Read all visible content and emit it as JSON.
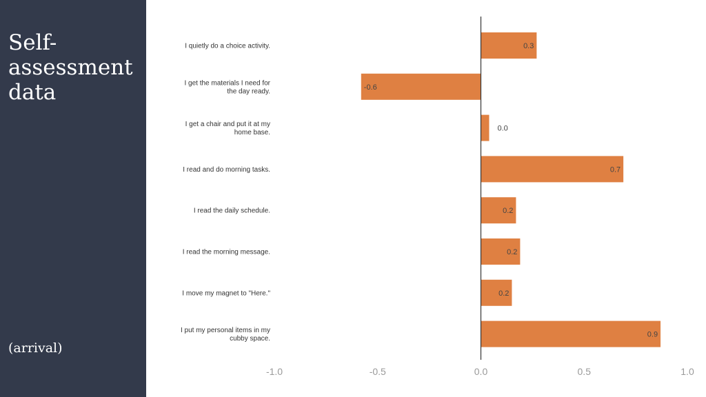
{
  "slide": {
    "title": "Self-assessment data",
    "subtitle": "(arrival)"
  },
  "colors": {
    "sidebar_bg": "#333a4b",
    "bar": "#df8042",
    "axis": "#333333"
  },
  "chart_data": {
    "type": "bar",
    "orientation": "horizontal",
    "categories": [
      "I quietly do a choice activity.",
      "I get the materials I need for the day ready.",
      "I get a chair and put it at my home base.",
      "I read and do morning tasks.",
      "I read the daily schedule.",
      "I read the morning message.",
      "I move my magnet to \"Here.\"",
      "I put my personal items in my cubby space."
    ],
    "category_lines": [
      [
        "I quietly do a choice activity."
      ],
      [
        "I get the materials I need for",
        "the day ready."
      ],
      [
        "I get a chair and put it at my",
        "home base."
      ],
      [
        "I read and do morning tasks."
      ],
      [
        "I read the daily schedule."
      ],
      [
        "I read the morning message."
      ],
      [
        "I move my magnet to \"Here.\""
      ],
      [
        "I put my personal items in my",
        "cubby space."
      ]
    ],
    "values": [
      0.27,
      -0.58,
      0.04,
      0.69,
      0.17,
      0.19,
      0.15,
      0.87
    ],
    "value_labels": [
      "0.3",
      "-0.6",
      "0.0",
      "0.7",
      "0.2",
      "0.2",
      "0.2",
      "0.9"
    ],
    "xlim": [
      -1.0,
      1.0
    ],
    "xticks": [
      -1.0,
      -0.5,
      0.0,
      0.5,
      1.0
    ],
    "xtick_labels": [
      "-1.0",
      "-0.5",
      "0.0",
      "0.5",
      "1.0"
    ],
    "grid": false,
    "legend": "none"
  }
}
